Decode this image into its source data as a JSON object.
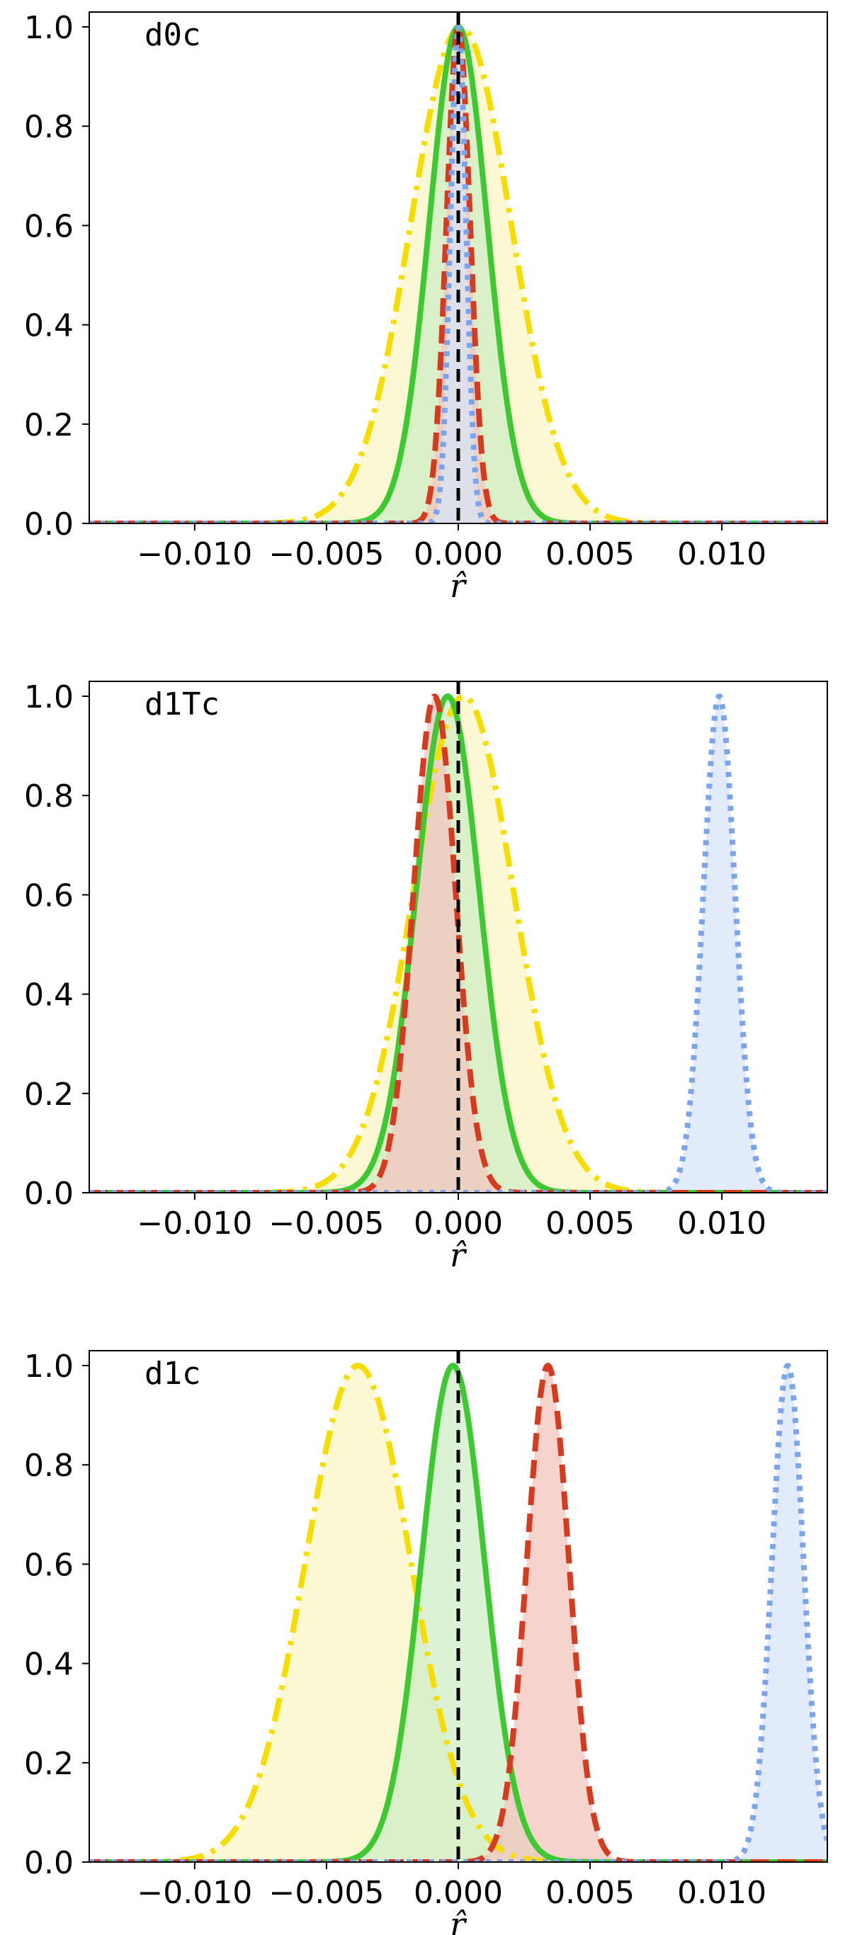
{
  "chart_data": [
    {
      "type": "line",
      "panel_label": "d0c",
      "xlabel": "r̂",
      "ylabel": "",
      "xlim": [
        -0.014,
        0.014
      ],
      "ylim": [
        0,
        1.03
      ],
      "xticks": [
        -0.01,
        -0.005,
        0.0,
        0.005,
        0.01
      ],
      "xtick_labels": [
        "−0.010",
        "−0.005",
        "0.000",
        "0.005",
        "0.010"
      ],
      "yticks": [
        0.0,
        0.2,
        0.4,
        0.6,
        0.8,
        1.0
      ],
      "ytick_labels": [
        "0.0",
        "0.2",
        "0.4",
        "0.6",
        "0.8",
        "1.0"
      ],
      "reference_line_x": 0.0,
      "grid": false,
      "series": [
        {
          "mu": 0.0001,
          "sigma": 0.0019,
          "color": "#f7dc00",
          "fill": "#fbf5c4",
          "style": "dashdot"
        },
        {
          "mu": 0.0,
          "sigma": 0.0011,
          "color": "#3ec832",
          "fill": "#cfeec6",
          "style": "solid"
        },
        {
          "mu": 0.0,
          "sigma": 0.00045,
          "color": "#d63b20",
          "fill": "#f1c6bd",
          "style": "dashed"
        },
        {
          "mu": 0.0,
          "sigma": 0.0003,
          "color": "#7aa4ec",
          "fill": "#d8e4f8",
          "style": "dotted"
        }
      ]
    },
    {
      "type": "line",
      "panel_label": "d1Tc",
      "xlabel": "r̂",
      "ylabel": "",
      "xlim": [
        -0.014,
        0.014
      ],
      "ylim": [
        0,
        1.03
      ],
      "xticks": [
        -0.01,
        -0.005,
        0.0,
        0.005,
        0.01
      ],
      "xtick_labels": [
        "−0.010",
        "−0.005",
        "0.000",
        "0.005",
        "0.010"
      ],
      "yticks": [
        0.0,
        0.2,
        0.4,
        0.6,
        0.8,
        1.0
      ],
      "ytick_labels": [
        "0.0",
        "0.2",
        "0.4",
        "0.6",
        "0.8",
        "1.0"
      ],
      "reference_line_x": 0.0,
      "grid": false,
      "series": [
        {
          "mu": 0.0002,
          "sigma": 0.0019,
          "color": "#f7dc00",
          "fill": "#fbf5c4",
          "style": "dashdot"
        },
        {
          "mu": -0.0004,
          "sigma": 0.0012,
          "color": "#3ec832",
          "fill": "#cfeec6",
          "style": "solid"
        },
        {
          "mu": -0.0009,
          "sigma": 0.0008,
          "color": "#d63b20",
          "fill": "#f1c6bd",
          "style": "dashed"
        },
        {
          "mu": 0.0099,
          "sigma": 0.0006,
          "color": "#7aa4ec",
          "fill": "#d8e4f8",
          "style": "dotted"
        }
      ]
    },
    {
      "type": "line",
      "panel_label": "d1c",
      "xlabel": "r̂",
      "ylabel": "",
      "xlim": [
        -0.014,
        0.014
      ],
      "ylim": [
        0,
        1.03
      ],
      "xticks": [
        -0.01,
        -0.005,
        0.0,
        0.005,
        0.01
      ],
      "xtick_labels": [
        "−0.010",
        "−0.005",
        "0.000",
        "0.005",
        "0.010"
      ],
      "yticks": [
        0.0,
        0.2,
        0.4,
        0.6,
        0.8,
        1.0
      ],
      "ytick_labels": [
        "0.0",
        "0.2",
        "0.4",
        "0.6",
        "0.8",
        "1.0"
      ],
      "reference_line_x": 0.0,
      "grid": false,
      "series": [
        {
          "mu": -0.0038,
          "sigma": 0.002,
          "color": "#f7dc00",
          "fill": "#fbf5c4",
          "style": "dashdot"
        },
        {
          "mu": -0.0002,
          "sigma": 0.0012,
          "color": "#3ec832",
          "fill": "#cfeec6",
          "style": "solid"
        },
        {
          "mu": 0.0034,
          "sigma": 0.0008,
          "color": "#d63b20",
          "fill": "#f1c6bd",
          "style": "dashed"
        },
        {
          "mu": 0.0125,
          "sigma": 0.0006,
          "color": "#7aa4ec",
          "fill": "#d8e4f8",
          "style": "dotted"
        }
      ]
    }
  ]
}
